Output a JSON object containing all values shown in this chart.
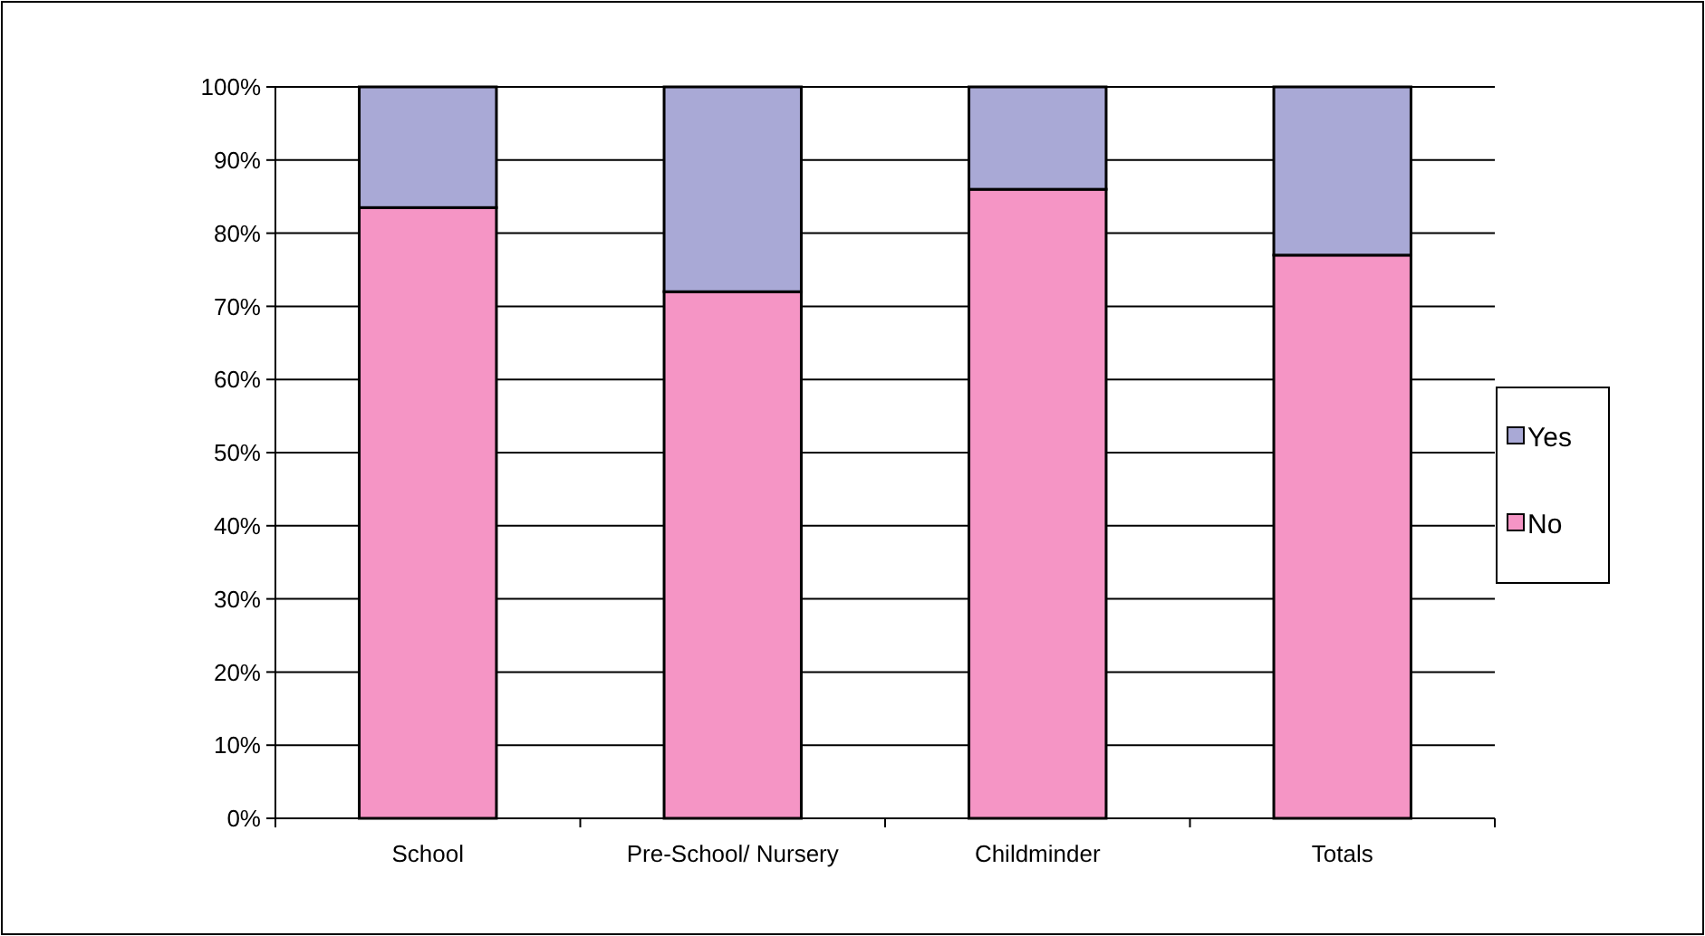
{
  "chart_data": {
    "type": "bar",
    "stacked": true,
    "categories": [
      "School",
      "Pre-School/ Nursery",
      "Childminder",
      "Totals"
    ],
    "series": [
      {
        "name": "No",
        "color": "#f595c5",
        "values": [
          83.5,
          72,
          86,
          77
        ]
      },
      {
        "name": "Yes",
        "color": "#a9a9d6",
        "values": [
          16.5,
          28,
          14,
          23
        ]
      }
    ],
    "ylim": [
      0,
      100
    ],
    "yticks": [
      {
        "value": 0,
        "label": "0%"
      },
      {
        "value": 10,
        "label": "10%"
      },
      {
        "value": 20,
        "label": "20%"
      },
      {
        "value": 30,
        "label": "30%"
      },
      {
        "value": 40,
        "label": "40%"
      },
      {
        "value": 50,
        "label": "50%"
      },
      {
        "value": 60,
        "label": "60%"
      },
      {
        "value": 70,
        "label": "70%"
      },
      {
        "value": 80,
        "label": "80%"
      },
      {
        "value": 90,
        "label": "90%"
      },
      {
        "value": 100,
        "label": "100%"
      }
    ],
    "grid": "y",
    "legend": "right"
  }
}
